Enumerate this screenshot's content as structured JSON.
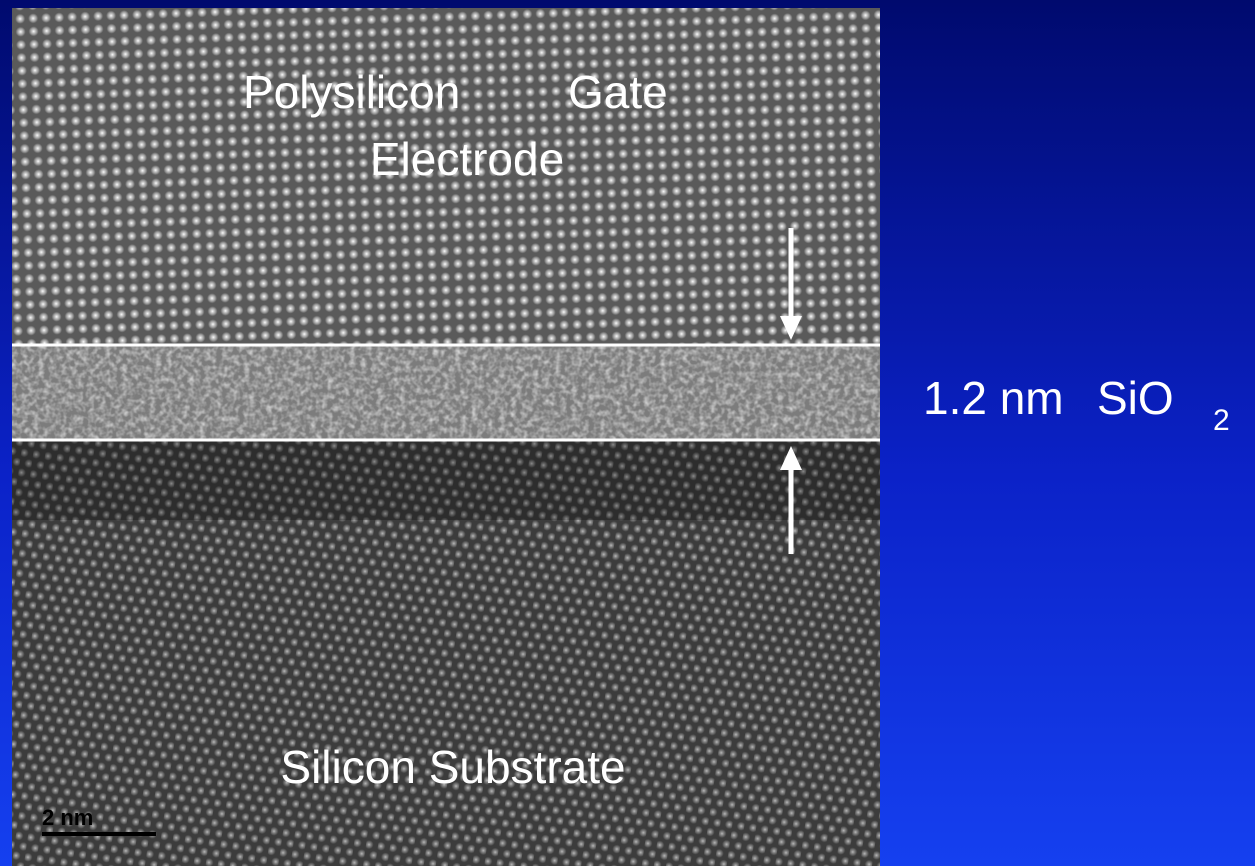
{
  "slide": {
    "gate_label": {
      "word1": "Polysilicon",
      "word2": "Gate",
      "line2": "Electrode"
    },
    "oxide_label": {
      "thickness": "1.2 nm",
      "formula": "SiO",
      "subscript": "2"
    },
    "substrate_label": "Silicon Substrate",
    "scale_bar": "2 nm"
  }
}
